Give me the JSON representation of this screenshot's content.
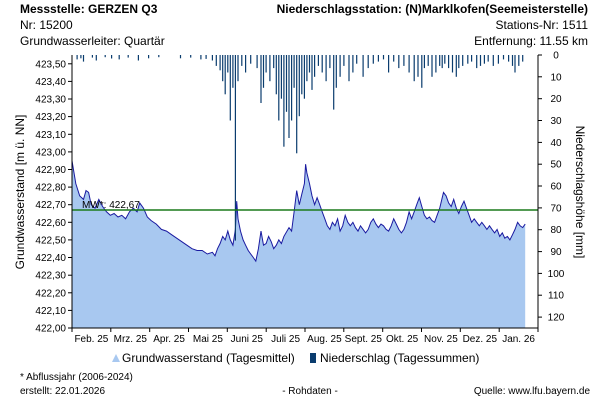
{
  "header": {
    "station_left": "Messstelle: GERZEN Q3",
    "number_left": "Nr: 15200",
    "aquifer": "Grundwasserleiter: Quartär",
    "station_right": "Niederschlagsstation: (N)Marklkofen(Seemeisterstelle)",
    "number_right": "Stations-Nr: 1511",
    "distance": "Entfernung: 11.55 km"
  },
  "chart_data": {
    "type": "area",
    "ylabel_left": "Grundwasserstand [m ü. NN]",
    "ylabel_right": "Niederschlagshöhe [mm]",
    "y_left_range": [
      422.0,
      423.55
    ],
    "y_left_ticks": [
      "423,50",
      "423,40",
      "423,30",
      "423,20",
      "423,10",
      "423,00",
      "422,90",
      "422,80",
      "422,70",
      "422,60",
      "422,50",
      "422,40",
      "422,30",
      "422,20",
      "422,10",
      "422,00"
    ],
    "y_right_range": [
      0,
      125
    ],
    "y_right_ticks": [
      "0",
      "10",
      "20",
      "30",
      "40",
      "50",
      "60",
      "70",
      "80",
      "90",
      "100",
      "110",
      "120"
    ],
    "x_ticks": [
      "Feb. 25",
      "Mrz. 25",
      "Apr. 25",
      "Mai 25",
      "Juni 25",
      "Juli 25",
      "Aug. 25",
      "Sept. 25",
      "Okt. 25",
      "Nov. 25",
      "Dez. 25",
      "Jan. 26"
    ],
    "x_range_days": [
      0,
      365
    ],
    "mw": {
      "label": "MW*: 422,67",
      "value": 422.67,
      "color": "#1a7a1a"
    },
    "series": [
      {
        "name": "Grundwasserstand (Tagesmittel)",
        "color": "#a8c8f0",
        "line_color": "#1a1aa0",
        "points": [
          [
            0,
            422.95
          ],
          [
            3,
            422.82
          ],
          [
            6,
            422.75
          ],
          [
            9,
            422.73
          ],
          [
            11,
            422.78
          ],
          [
            13,
            422.77
          ],
          [
            15,
            422.7
          ],
          [
            18,
            422.68
          ],
          [
            21,
            422.73
          ],
          [
            24,
            422.69
          ],
          [
            27,
            422.66
          ],
          [
            30,
            422.64
          ],
          [
            33,
            422.65
          ],
          [
            36,
            422.63
          ],
          [
            39,
            422.64
          ],
          [
            42,
            422.62
          ],
          [
            45,
            422.66
          ],
          [
            48,
            422.68
          ],
          [
            51,
            422.66
          ],
          [
            53,
            422.71
          ],
          [
            56,
            422.68
          ],
          [
            59,
            422.63
          ],
          [
            62,
            422.61
          ],
          [
            66,
            422.59
          ],
          [
            70,
            422.56
          ],
          [
            74,
            422.55
          ],
          [
            78,
            422.53
          ],
          [
            82,
            422.51
          ],
          [
            86,
            422.49
          ],
          [
            90,
            422.47
          ],
          [
            94,
            422.45
          ],
          [
            98,
            422.44
          ],
          [
            102,
            422.44
          ],
          [
            106,
            422.42
          ],
          [
            110,
            422.43
          ],
          [
            112,
            422.41
          ],
          [
            114,
            422.45
          ],
          [
            116,
            422.48
          ],
          [
            118,
            422.52
          ],
          [
            120,
            422.5
          ],
          [
            122,
            422.55
          ],
          [
            124,
            422.5
          ],
          [
            126,
            422.47
          ],
          [
            128,
            422.56
          ],
          [
            129,
            422.72
          ],
          [
            130,
            422.62
          ],
          [
            132,
            422.55
          ],
          [
            134,
            422.5
          ],
          [
            136,
            422.47
          ],
          [
            138,
            422.44
          ],
          [
            140,
            422.42
          ],
          [
            142,
            422.4
          ],
          [
            144,
            422.38
          ],
          [
            146,
            422.45
          ],
          [
            148,
            422.55
          ],
          [
            150,
            422.47
          ],
          [
            152,
            422.48
          ],
          [
            154,
            422.52
          ],
          [
            156,
            422.49
          ],
          [
            158,
            422.45
          ],
          [
            160,
            422.47
          ],
          [
            162,
            422.5
          ],
          [
            164,
            422.48
          ],
          [
            166,
            422.52
          ],
          [
            170,
            422.57
          ],
          [
            172,
            422.55
          ],
          [
            174,
            422.66
          ],
          [
            176,
            422.78
          ],
          [
            178,
            422.7
          ],
          [
            180,
            422.76
          ],
          [
            182,
            422.82
          ],
          [
            183,
            422.93
          ],
          [
            184,
            422.88
          ],
          [
            186,
            422.82
          ],
          [
            188,
            422.75
          ],
          [
            190,
            422.7
          ],
          [
            192,
            422.74
          ],
          [
            194,
            422.7
          ],
          [
            196,
            422.66
          ],
          [
            198,
            422.62
          ],
          [
            200,
            422.58
          ],
          [
            202,
            422.56
          ],
          [
            204,
            422.6
          ],
          [
            206,
            422.58
          ],
          [
            208,
            422.62
          ],
          [
            210,
            422.55
          ],
          [
            212,
            422.58
          ],
          [
            214,
            422.64
          ],
          [
            216,
            422.6
          ],
          [
            218,
            422.58
          ],
          [
            220,
            422.6
          ],
          [
            222,
            422.57
          ],
          [
            224,
            422.55
          ],
          [
            226,
            422.58
          ],
          [
            228,
            422.56
          ],
          [
            230,
            422.54
          ],
          [
            232,
            422.56
          ],
          [
            234,
            422.6
          ],
          [
            236,
            422.62
          ],
          [
            238,
            422.59
          ],
          [
            240,
            422.57
          ],
          [
            242,
            422.59
          ],
          [
            244,
            422.58
          ],
          [
            246,
            422.56
          ],
          [
            248,
            422.55
          ],
          [
            250,
            422.58
          ],
          [
            252,
            422.62
          ],
          [
            254,
            422.59
          ],
          [
            256,
            422.56
          ],
          [
            258,
            422.54
          ],
          [
            260,
            422.56
          ],
          [
            262,
            422.6
          ],
          [
            264,
            422.66
          ],
          [
            266,
            422.62
          ],
          [
            268,
            422.66
          ],
          [
            270,
            422.7
          ],
          [
            272,
            422.74
          ],
          [
            274,
            422.69
          ],
          [
            276,
            422.64
          ],
          [
            278,
            422.62
          ],
          [
            280,
            422.63
          ],
          [
            282,
            422.61
          ],
          [
            284,
            422.6
          ],
          [
            286,
            422.64
          ],
          [
            288,
            422.68
          ],
          [
            290,
            422.74
          ],
          [
            291,
            422.77
          ],
          [
            293,
            422.75
          ],
          [
            295,
            422.71
          ],
          [
            297,
            422.69
          ],
          [
            299,
            422.73
          ],
          [
            301,
            422.68
          ],
          [
            303,
            422.65
          ],
          [
            305,
            422.69
          ],
          [
            307,
            422.72
          ],
          [
            309,
            422.68
          ],
          [
            311,
            422.64
          ],
          [
            313,
            422.6
          ],
          [
            315,
            422.62
          ],
          [
            317,
            422.6
          ],
          [
            319,
            422.58
          ],
          [
            321,
            422.6
          ],
          [
            323,
            422.58
          ],
          [
            325,
            422.56
          ],
          [
            327,
            422.58
          ],
          [
            329,
            422.56
          ],
          [
            331,
            422.54
          ],
          [
            333,
            422.56
          ],
          [
            335,
            422.52
          ],
          [
            337,
            422.54
          ],
          [
            339,
            422.51
          ],
          [
            341,
            422.52
          ],
          [
            343,
            422.5
          ],
          [
            345,
            422.53
          ],
          [
            347,
            422.56
          ],
          [
            349,
            422.6
          ],
          [
            351,
            422.58
          ],
          [
            353,
            422.57
          ],
          [
            355,
            422.59
          ]
        ]
      },
      {
        "name": "Niederschlag (Tagessummen)",
        "color": "#0a3c6e",
        "bars": [
          [
            4,
            2
          ],
          [
            7,
            1.5
          ],
          [
            9,
            3
          ],
          [
            16,
            1.2
          ],
          [
            19,
            2.5
          ],
          [
            26,
            1
          ],
          [
            31,
            1.6
          ],
          [
            37,
            2
          ],
          [
            44,
            1.2
          ],
          [
            52,
            2.5
          ],
          [
            60,
            1.5
          ],
          [
            68,
            1
          ],
          [
            85,
            1.5
          ],
          [
            93,
            1.2
          ],
          [
            101,
            2
          ],
          [
            105,
            1.8
          ],
          [
            110,
            2.5
          ],
          [
            113,
            5
          ],
          [
            116,
            7
          ],
          [
            118,
            12
          ],
          [
            120,
            18
          ],
          [
            122,
            8
          ],
          [
            124,
            30
          ],
          [
            126,
            15
          ],
          [
            128,
            85
          ],
          [
            130,
            12
          ],
          [
            133,
            5
          ],
          [
            136,
            8
          ],
          [
            140,
            4
          ],
          [
            145,
            6
          ],
          [
            148,
            22
          ],
          [
            150,
            15
          ],
          [
            152,
            8
          ],
          [
            155,
            12
          ],
          [
            158,
            6
          ],
          [
            160,
            18
          ],
          [
            162,
            30
          ],
          [
            164,
            20
          ],
          [
            166,
            42
          ],
          [
            168,
            26
          ],
          [
            170,
            38
          ],
          [
            172,
            30
          ],
          [
            174,
            15
          ],
          [
            176,
            45
          ],
          [
            178,
            28
          ],
          [
            180,
            18
          ],
          [
            182,
            20
          ],
          [
            184,
            12
          ],
          [
            186,
            8
          ],
          [
            188,
            16
          ],
          [
            190,
            10
          ],
          [
            193,
            5
          ],
          [
            196,
            8
          ],
          [
            199,
            12
          ],
          [
            202,
            6
          ],
          [
            205,
            25
          ],
          [
            207,
            15
          ],
          [
            210,
            10
          ],
          [
            213,
            5
          ],
          [
            217,
            12
          ],
          [
            220,
            8
          ],
          [
            223,
            4
          ],
          [
            228,
            10
          ],
          [
            232,
            6
          ],
          [
            236,
            4
          ],
          [
            240,
            3
          ],
          [
            244,
            2
          ],
          [
            248,
            8
          ],
          [
            252,
            3
          ],
          [
            256,
            6
          ],
          [
            260,
            5
          ],
          [
            264,
            8
          ],
          [
            268,
            12
          ],
          [
            271,
            10
          ],
          [
            274,
            15
          ],
          [
            276,
            6
          ],
          [
            279,
            5
          ],
          [
            282,
            10
          ],
          [
            285,
            8
          ],
          [
            288,
            5
          ],
          [
            290,
            6
          ],
          [
            292,
            4
          ],
          [
            295,
            6
          ],
          [
            298,
            8
          ],
          [
            301,
            10
          ],
          [
            303,
            6
          ],
          [
            306,
            5
          ],
          [
            310,
            4
          ],
          [
            313,
            3
          ],
          [
            317,
            6
          ],
          [
            320,
            5
          ],
          [
            323,
            4
          ],
          [
            326,
            3
          ],
          [
            330,
            5
          ],
          [
            334,
            4
          ],
          [
            338,
            2
          ],
          [
            342,
            3
          ],
          [
            345,
            5
          ],
          [
            347,
            8
          ],
          [
            350,
            5
          ],
          [
            353,
            3
          ]
        ]
      }
    ],
    "legend": [
      "Grundwasserstand (Tagesmittel)",
      "Niederschlag (Tagessummen)"
    ],
    "legend_placement": "bottom"
  },
  "footer": {
    "note": "* Abflussjahr (2006-2024)",
    "created": "erstellt:  22.01.2026",
    "raw": "- Rohdaten -",
    "source": "Quelle: www.lfu.bayern.de"
  }
}
